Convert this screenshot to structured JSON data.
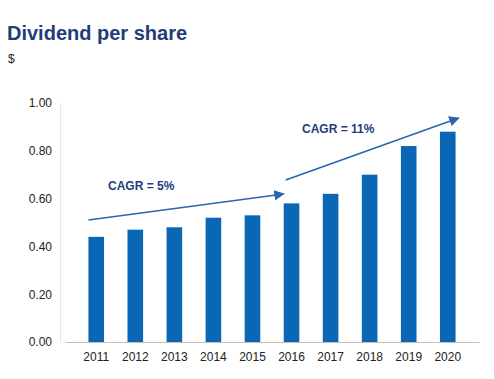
{
  "chart_data": {
    "type": "bar",
    "title": "Dividend per share",
    "subtitle": "$",
    "categories": [
      "2011",
      "2012",
      "2013",
      "2014",
      "2015",
      "2016",
      "2017",
      "2018",
      "2019",
      "2020"
    ],
    "values": [
      0.44,
      0.47,
      0.48,
      0.52,
      0.53,
      0.58,
      0.62,
      0.7,
      0.82,
      0.88
    ],
    "color": "#0a67b5",
    "ylim": [
      0,
      1
    ],
    "yticks": [
      {
        "value": 0,
        "label": "0.00"
      },
      {
        "value": 0.2,
        "label": "0.20"
      },
      {
        "value": 0.4,
        "label": "0.40"
      },
      {
        "value": 0.6,
        "label": "0.60"
      },
      {
        "value": 0.8,
        "label": "0.80"
      },
      {
        "value": 1,
        "label": "1.00"
      }
    ],
    "grid": false,
    "annotations": [
      "CAGR = 5%",
      "CAGR = 11%"
    ]
  }
}
